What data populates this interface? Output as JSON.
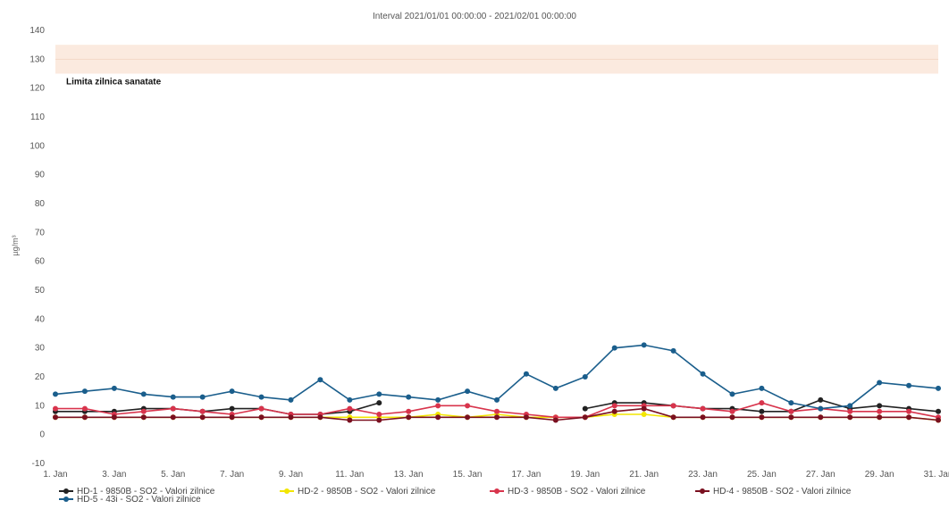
{
  "chart_data": {
    "type": "line",
    "title": "Interval 2021/01/01 00:00:00 - 2021/02/01 00:00:00",
    "ylabel": "µg/m³",
    "xlabel": "",
    "ylim": [
      -10,
      140
    ],
    "yticks": [
      -10,
      0,
      10,
      20,
      30,
      40,
      50,
      60,
      70,
      80,
      90,
      100,
      110,
      120,
      130,
      140
    ],
    "x": [
      "1. Jan",
      "2. Jan",
      "3. Jan",
      "4. Jan",
      "5. Jan",
      "6. Jan",
      "7. Jan",
      "8. Jan",
      "9. Jan",
      "10. Jan",
      "11. Jan",
      "12. Jan",
      "13. Jan",
      "14. Jan",
      "15. Jan",
      "16. Jan",
      "17. Jan",
      "18. Jan",
      "19. Jan",
      "20. Jan",
      "21. Jan",
      "22. Jan",
      "23. Jan",
      "24. Jan",
      "25. Jan",
      "26. Jan",
      "27. Jan",
      "28. Jan",
      "29. Jan",
      "30. Jan",
      "31. Jan"
    ],
    "xtick_labels": [
      "1. Jan",
      "3. Jan",
      "5. Jan",
      "7. Jan",
      "9. Jan",
      "11. Jan",
      "13. Jan",
      "15. Jan",
      "17. Jan",
      "19. Jan",
      "21. Jan",
      "23. Jan",
      "25. Jan",
      "27. Jan",
      "29. Jan",
      "31. Jan"
    ],
    "threshold_band": {
      "label": "Limita zilnica sanatate",
      "from": 125,
      "to": 135,
      "value": 130
    },
    "grid": false,
    "legend_position": "bottom-left",
    "series": [
      {
        "name": "HD-1 - 9850B - SO2 - Valori zilnice",
        "color": "#222222",
        "values": [
          8,
          8,
          8,
          9,
          9,
          8,
          9,
          9,
          7,
          7,
          8,
          11,
          null,
          null,
          null,
          null,
          null,
          null,
          9,
          11,
          11,
          10,
          9,
          9,
          8,
          8,
          12,
          9,
          10,
          9,
          8
        ]
      },
      {
        "name": "HD-2 - 9850B - SO2 - Valori zilnice",
        "color": "#f2e600",
        "values": [
          6,
          6,
          6,
          6,
          6,
          6,
          6,
          6,
          6,
          6,
          6,
          6,
          6,
          7,
          6,
          7,
          6,
          6,
          6,
          7,
          7,
          6,
          6,
          6,
          6,
          6,
          6,
          6,
          6,
          6,
          5
        ]
      },
      {
        "name": "HD-3 - 9850B - SO2 - Valori zilnice",
        "color": "#d8344c",
        "values": [
          9,
          9,
          7,
          8,
          9,
          8,
          7,
          9,
          7,
          7,
          9,
          7,
          8,
          10,
          10,
          8,
          7,
          6,
          6,
          10,
          10,
          10,
          9,
          8,
          11,
          8,
          9,
          8,
          8,
          8,
          6
        ]
      },
      {
        "name": "HD-4 - 9850B - SO2 - Valori zilnice",
        "color": "#7a1020",
        "values": [
          6,
          6,
          6,
          6,
          6,
          6,
          6,
          6,
          6,
          6,
          5,
          5,
          6,
          6,
          6,
          6,
          6,
          5,
          6,
          8,
          9,
          6,
          6,
          6,
          6,
          6,
          6,
          6,
          6,
          6,
          5
        ]
      },
      {
        "name": "HD-5 - 43i - SO2 - Valori zilnice",
        "color": "#1a5e8c",
        "values": [
          14,
          15,
          16,
          14,
          13,
          13,
          15,
          13,
          12,
          19,
          12,
          14,
          13,
          12,
          15,
          12,
          21,
          16,
          20,
          30,
          31,
          29,
          21,
          14,
          16,
          11,
          9,
          10,
          18,
          17,
          16
        ]
      }
    ]
  }
}
